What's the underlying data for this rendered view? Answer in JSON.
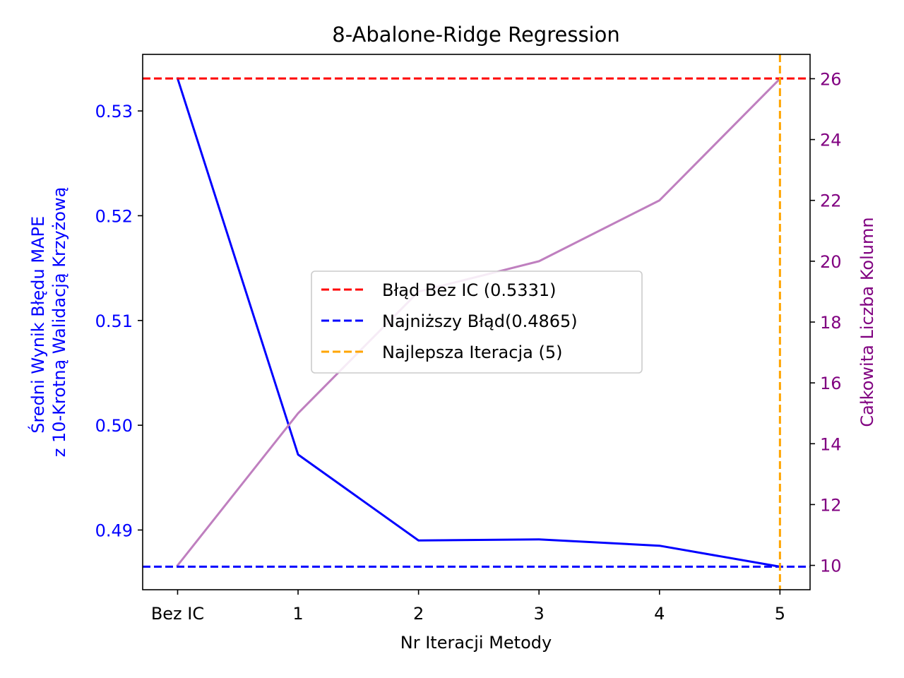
{
  "chart_data": {
    "type": "line",
    "title": "8-Abalone-Ridge Regression",
    "xlabel": "Nr Iteracji Metody",
    "ylabel_left_line1": "Średni Wynik Błędu MAPE",
    "ylabel_left_line2": "z 10-Krotną Walidacją Krzyżową",
    "ylabel_right": "Całkowita Liczba Kolumn",
    "categories": [
      "Bez IC",
      "1",
      "2",
      "3",
      "4",
      "5"
    ],
    "x": [
      0,
      1,
      2,
      3,
      4,
      5
    ],
    "xlim": [
      -0.29,
      5.25
    ],
    "ylim_left": [
      0.4843,
      0.5354
    ],
    "ylim_right": [
      9.2,
      26.8
    ],
    "yticks_left": [
      0.49,
      0.5,
      0.51,
      0.52,
      0.53
    ],
    "yticks_left_labels": [
      "0.49",
      "0.50",
      "0.51",
      "0.52",
      "0.53"
    ],
    "yticks_right": [
      10,
      12,
      14,
      16,
      18,
      20,
      22,
      24,
      26
    ],
    "yticks_right_labels": [
      "10",
      "12",
      "14",
      "16",
      "18",
      "20",
      "22",
      "24",
      "26"
    ],
    "grid": false,
    "legend_position": "center",
    "series": [
      {
        "values": [
          0.5331,
          0.4972,
          0.489,
          0.4891,
          0.4885,
          0.4865
        ],
        "color": "#0000ff",
        "axis": "left",
        "style": "solid"
      },
      {
        "values": [
          10,
          15,
          19,
          20,
          22,
          26
        ],
        "color": "#bf7fbf",
        "axis": "right",
        "style": "solid"
      }
    ],
    "reference_lines": [
      {
        "name": "Błąd Bez IC (0.5331)",
        "orientation": "horizontal",
        "value": 0.5331,
        "axis": "left",
        "color": "#ff0000",
        "style": "dashed"
      },
      {
        "name": "Najniższy Błąd(0.4865)",
        "orientation": "horizontal",
        "value": 0.4865,
        "axis": "left",
        "color": "#0000ff",
        "style": "dashed"
      },
      {
        "name": "Najlepsza Iteracja (5)",
        "orientation": "vertical",
        "value": 5,
        "axis": "x",
        "color": "#ffa500",
        "style": "dashed"
      }
    ],
    "left_axis_color": "#0000ff",
    "right_axis_color": "#800080"
  }
}
